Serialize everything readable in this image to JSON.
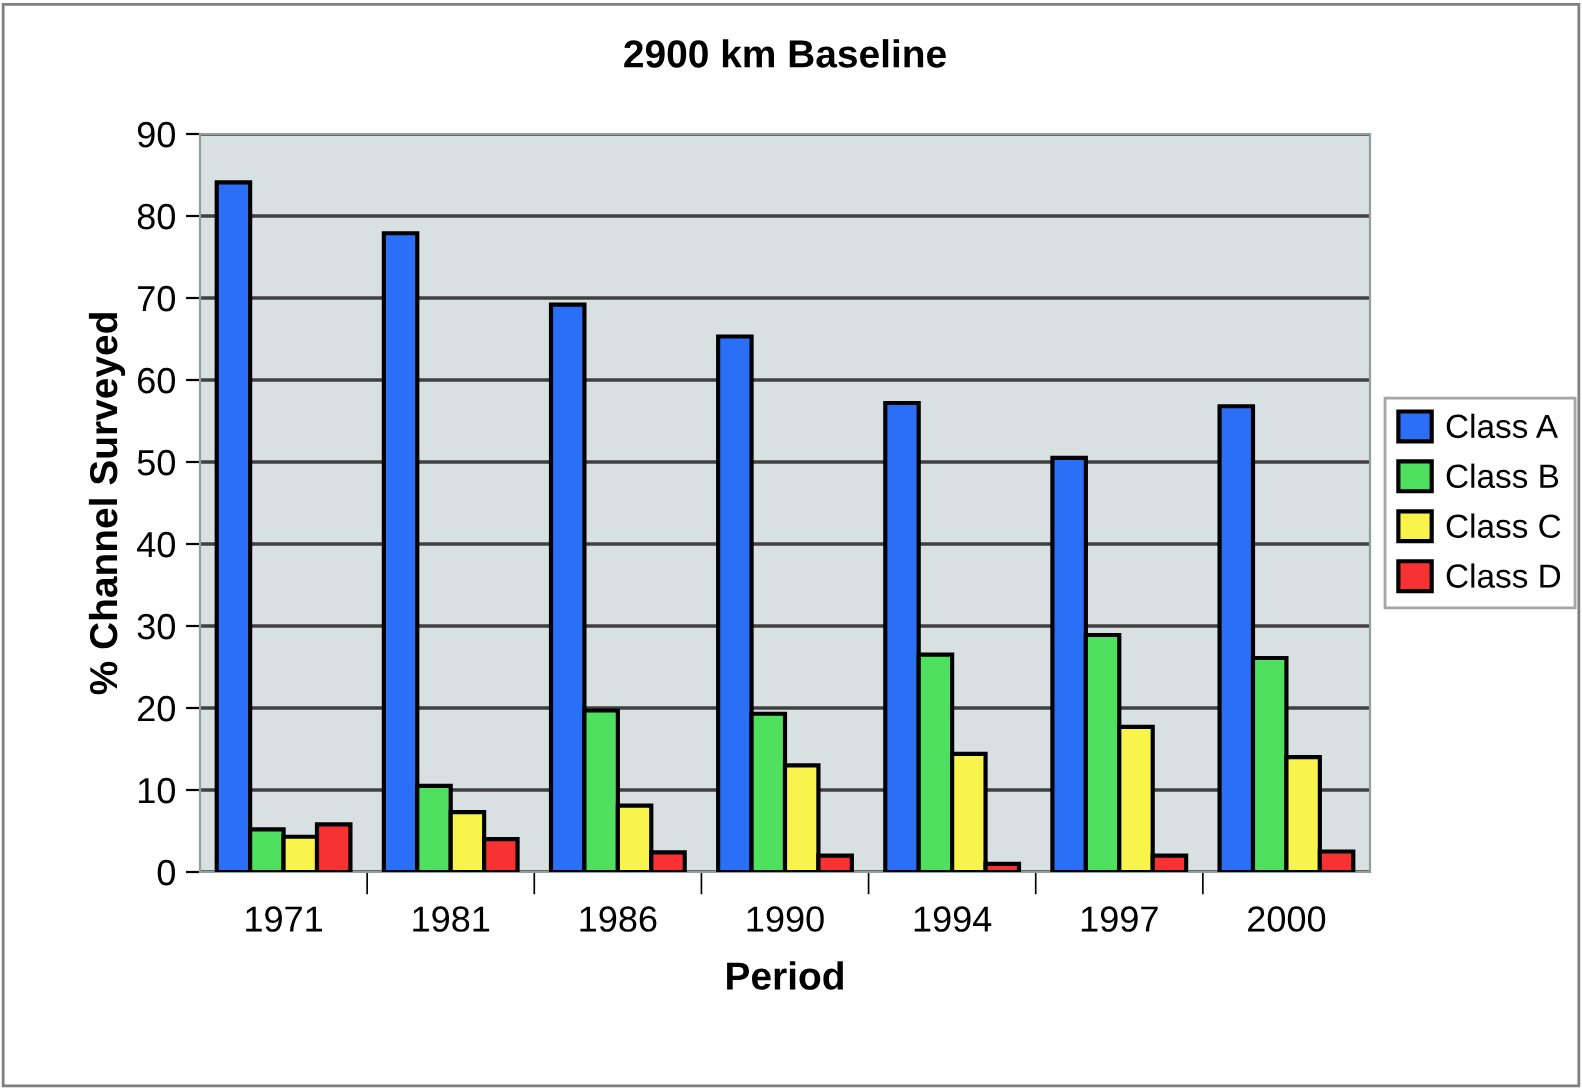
{
  "chart_data": {
    "type": "bar",
    "title": "2900 km Baseline",
    "xlabel": "Period",
    "ylabel": "% Channel Surveyed",
    "categories": [
      "1971",
      "1981",
      "1986",
      "1990",
      "1994",
      "1997",
      "2000"
    ],
    "series": [
      {
        "name": "Class A",
        "color": "#2a6ff5",
        "values": [
          84.1,
          77.9,
          69.2,
          65.3,
          57.2,
          50.5,
          56.8
        ]
      },
      {
        "name": "Class B",
        "color": "#50e060",
        "values": [
          5.2,
          10.5,
          19.7,
          19.3,
          26.5,
          28.9,
          26.1
        ]
      },
      {
        "name": "Class C",
        "color": "#f8f44c",
        "values": [
          4.3,
          7.3,
          8.1,
          13.0,
          14.4,
          17.7,
          14.0
        ]
      },
      {
        "name": "Class D",
        "color": "#f83232",
        "values": [
          5.8,
          4.0,
          2.4,
          2.0,
          1.0,
          2.0,
          2.5
        ]
      }
    ],
    "ylim": [
      0,
      90
    ],
    "yticks": [
      0,
      10,
      20,
      30,
      40,
      50,
      60,
      70,
      80,
      90
    ],
    "grid": "y",
    "legend": "right"
  }
}
